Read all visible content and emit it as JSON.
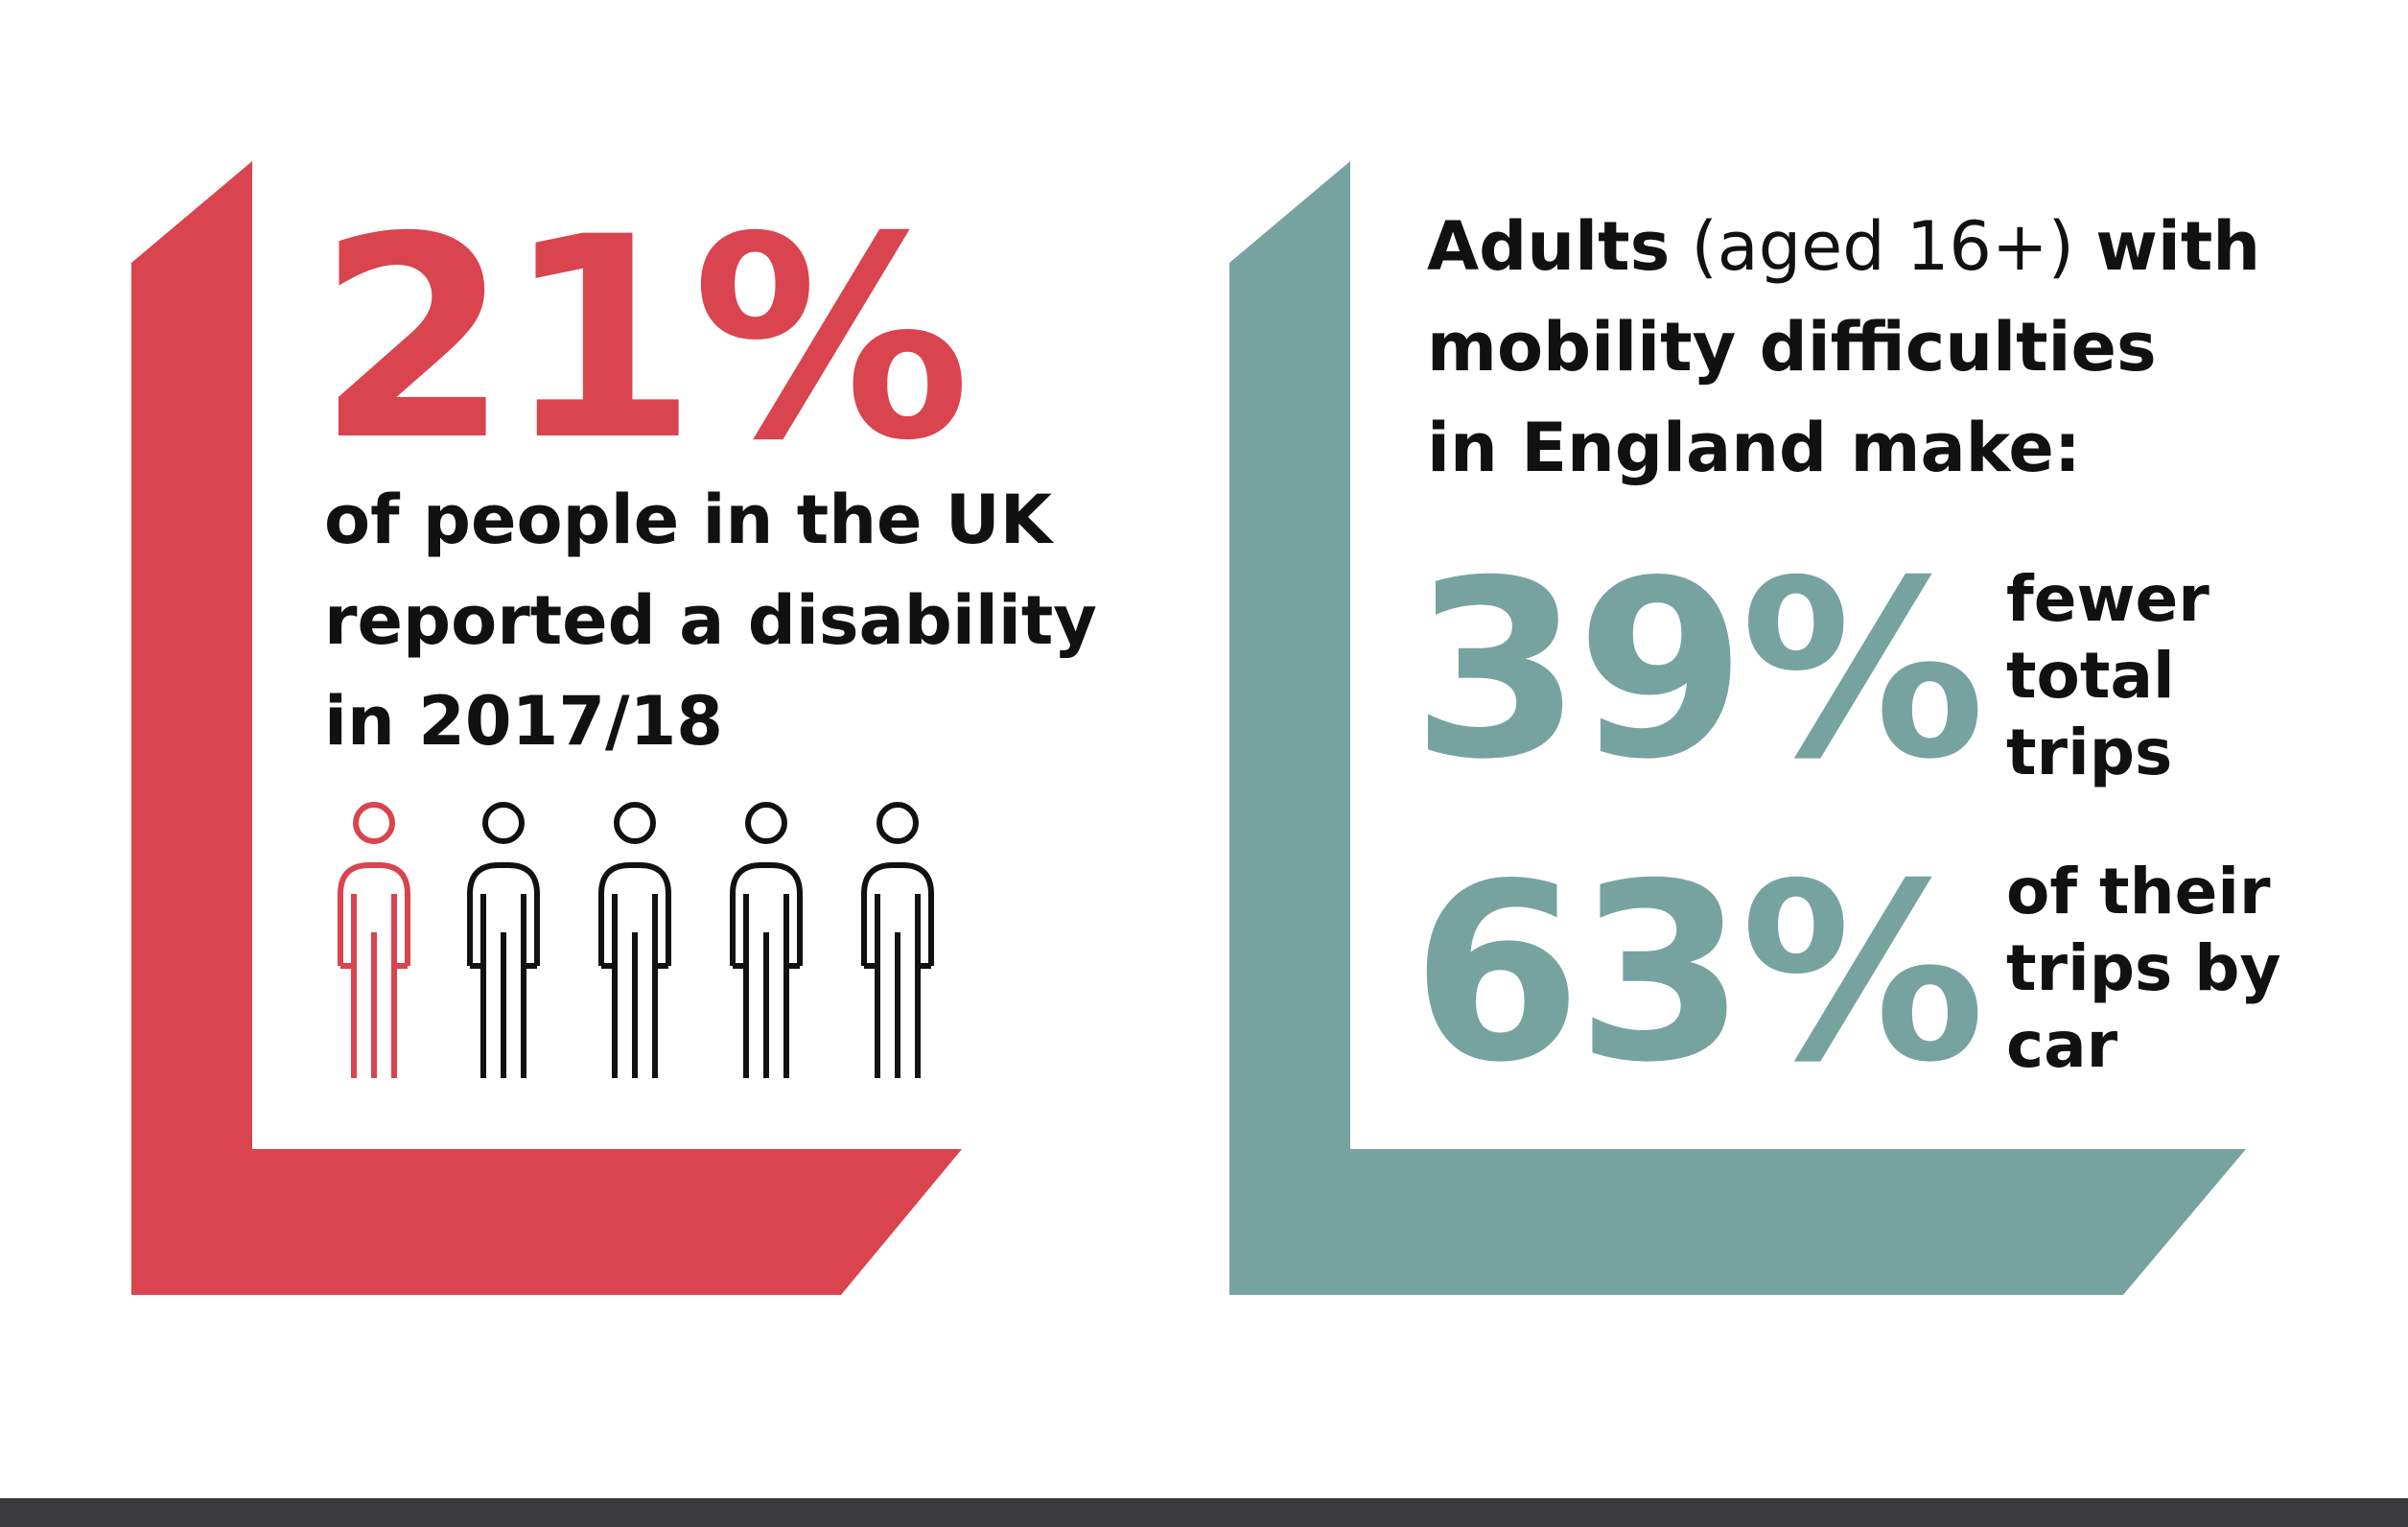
{
  "colors": {
    "accent_red": "#d9444f",
    "accent_teal": "#76a3a0",
    "text": "#111111",
    "bottom_bar": "#3b3b3d"
  },
  "left_panel": {
    "stat": "21%",
    "lines": [
      "of people in the UK",
      "reported a disability",
      "in 2017/18"
    ],
    "people_icons": [
      "person-icon-highlighted",
      "person-icon",
      "person-icon",
      "person-icon",
      "person-icon"
    ],
    "highlighted_count": 1,
    "total_count": 5
  },
  "right_panel": {
    "heading": {
      "line1_bold_start": "Adults",
      "line1_light": " (aged 16+) ",
      "line1_bold_end": "with",
      "line2": "mobility difficulties",
      "line3": "in England make:"
    },
    "stats": [
      {
        "value": "39%",
        "lines": [
          "fewer",
          "total",
          "trips"
        ]
      },
      {
        "value": "63%",
        "lines": [
          "of their",
          "trips by",
          "car"
        ]
      }
    ]
  }
}
